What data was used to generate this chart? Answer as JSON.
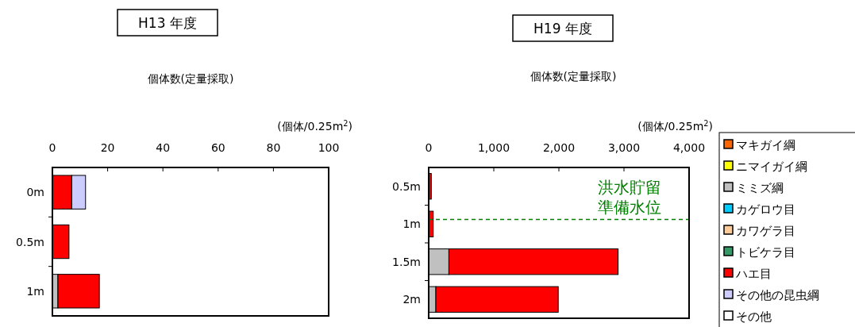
{
  "chart_data": [
    {
      "type": "bar",
      "orientation": "horizontal",
      "stacked": true,
      "title": "H13 年度",
      "subtitle": "個体数(定量採取)",
      "xlabel": "(個体/0.25m$^{2}$)",
      "categories": [
        "0m",
        "0.5m",
        "1m"
      ],
      "xlim": [
        0,
        100
      ],
      "xticks": [
        0,
        20,
        40,
        60,
        80,
        100
      ],
      "legend": false,
      "series": [
        {
          "color": "#c0c0c0",
          "values": [
            0,
            0,
            2
          ]
        },
        {
          "color": "#ff0000",
          "values": [
            7,
            6,
            15
          ]
        },
        {
          "color": "#ccccff",
          "values": [
            5,
            0,
            0
          ]
        }
      ]
    },
    {
      "type": "bar",
      "orientation": "horizontal",
      "stacked": true,
      "title": "H19 年度",
      "subtitle": "個体数(定量採取)",
      "xlabel": "(個体/0.25m$^{2}$)",
      "categories": [
        "0.5m",
        "1m",
        "1.5m",
        "2m"
      ],
      "xlim": [
        0,
        4000
      ],
      "xticks": [
        0,
        {
          "value": 1000,
          "label": "1,000"
        },
        {
          "value": 2000,
          "label": "2,000"
        },
        {
          "value": 3000,
          "label": "3,000"
        },
        {
          "value": 4000,
          "label": "4,000"
        }
      ],
      "legend": "right",
      "ref_lines": [
        {
          "axis": "y",
          "value": "1m",
          "label": "洪水貯留準備水位",
          "color": "#008000",
          "line_style": "dashed"
        }
      ],
      "series": [
        {
          "name": "マキガイ綱",
          "color": "#ff6600",
          "values": [
            0,
            0,
            0,
            0
          ]
        },
        {
          "name": "ニマイガイ綱",
          "color": "#ffff00",
          "values": [
            0,
            0,
            0,
            0
          ]
        },
        {
          "name": "ミミズ綱",
          "color": "#c0c0c0",
          "values": [
            0,
            0,
            310,
            110
          ]
        },
        {
          "name": "カゲロウ目",
          "color": "#00ccff",
          "values": [
            0,
            0,
            0,
            0
          ]
        },
        {
          "name": "カワゲラ目",
          "color": "#ffcc99",
          "values": [
            0,
            0,
            0,
            0
          ]
        },
        {
          "name": "トビケラ目",
          "color": "#339966",
          "values": [
            0,
            0,
            0,
            0
          ]
        },
        {
          "name": "ハエ目",
          "color": "#ff0000",
          "values": [
            40,
            70,
            2600,
            1880
          ]
        },
        {
          "name": "その他の昆虫綱",
          "color": "#ccccff",
          "values": [
            0,
            0,
            0,
            0
          ]
        },
        {
          "name": "その他",
          "color": "#ffffff",
          "values": [
            0,
            0,
            0,
            0
          ]
        }
      ]
    }
  ]
}
